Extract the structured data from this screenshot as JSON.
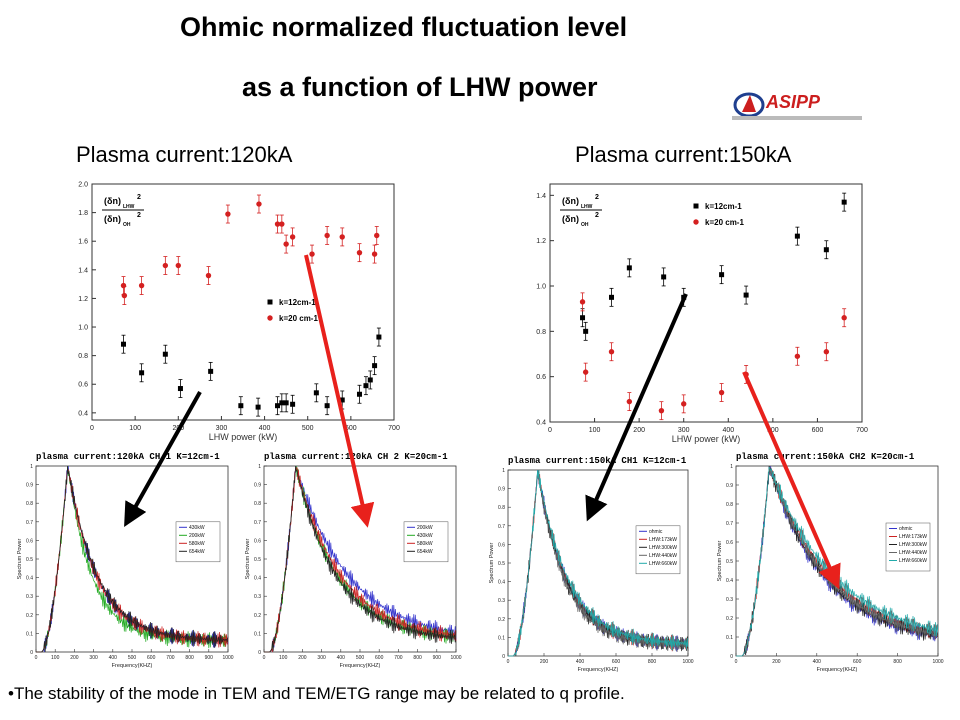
{
  "title_line1": "Ohmic normalized fluctuation level",
  "title_line2": "as a function of LHW power",
  "logo": {
    "text": "ASIPP",
    "color": "#cc1e1e"
  },
  "left_heading": "Plasma current:120kA",
  "right_heading": "Plasma current:150kA",
  "footer_note": "•The stability of the mode in TEM and TEM/ETG range may be related to q profile.",
  "arrow_colors": {
    "black": "#000000",
    "red": "#e8211c"
  },
  "chart_data": [
    {
      "id": "top-left",
      "type": "scatter",
      "xlabel": "LHW power  (kW)",
      "ylabel": "",
      "xlim": [
        0,
        700
      ],
      "ylim": [
        0.35,
        2.0
      ],
      "xticks": [
        0,
        100,
        200,
        300,
        400,
        500,
        600,
        700
      ],
      "yticks": [
        0.4,
        0.6,
        0.8,
        1.0,
        1.2,
        1.4,
        1.6,
        1.8,
        2.0
      ],
      "ytick_labels": [
        "0.4",
        "0.6",
        "0.8",
        "1.0",
        "1.2",
        "1.4",
        "1.6",
        "1.8",
        "2.0"
      ],
      "legend_formula": "(δn)LHW² / (δn)OH²",
      "series": [
        {
          "name": "k=12cm-1",
          "color": "#000000",
          "marker": "square",
          "x": [
            73,
            115,
            170,
            205,
            275,
            345,
            385,
            430,
            440,
            450,
            465,
            520,
            545,
            580,
            620,
            635,
            645,
            655,
            665
          ],
          "y": [
            0.88,
            0.68,
            0.81,
            0.57,
            0.69,
            0.45,
            0.44,
            0.45,
            0.47,
            0.47,
            0.46,
            0.54,
            0.45,
            0.49,
            0.53,
            0.59,
            0.63,
            0.73,
            0.93
          ]
        },
        {
          "name": "k=20 cm-1",
          "color": "#d42020",
          "marker": "circle",
          "x": [
            73,
            75,
            115,
            170,
            200,
            270,
            315,
            387,
            430,
            440,
            450,
            465,
            510,
            545,
            580,
            620,
            655,
            660
          ],
          "y": [
            1.29,
            1.22,
            1.29,
            1.43,
            1.43,
            1.36,
            1.79,
            1.86,
            1.72,
            1.72,
            1.58,
            1.63,
            1.51,
            1.64,
            1.63,
            1.52,
            1.51,
            1.64
          ]
        }
      ]
    },
    {
      "id": "top-right",
      "type": "scatter",
      "xlabel": "LHW  power  (kW)",
      "ylabel": "",
      "xlim": [
        0,
        700
      ],
      "ylim": [
        0.4,
        1.45
      ],
      "xticks": [
        0,
        100,
        200,
        300,
        400,
        500,
        600,
        700
      ],
      "yticks": [
        0.4,
        0.6,
        0.8,
        1.0,
        1.2,
        1.4
      ],
      "ytick_labels": [
        "0.4",
        "0.6",
        "0.8",
        "1.0",
        "1.2",
        "1.4"
      ],
      "legend_formula": "(δn)LHW² / (δn)OH²",
      "series": [
        {
          "name": "k=12cm-1",
          "color": "#000000",
          "marker": "square",
          "x": [
            73,
            80,
            138,
            178,
            255,
            300,
            385,
            440,
            555,
            620,
            660
          ],
          "y": [
            0.86,
            0.8,
            0.95,
            1.08,
            1.04,
            0.95,
            1.05,
            0.96,
            1.22,
            1.16,
            1.37
          ]
        },
        {
          "name": "k=20 cm-1",
          "color": "#d42020",
          "marker": "circle",
          "x": [
            73,
            80,
            138,
            178,
            250,
            300,
            385,
            440,
            555,
            620,
            660
          ],
          "y": [
            0.93,
            0.62,
            0.71,
            0.49,
            0.45,
            0.48,
            0.53,
            0.61,
            0.69,
            0.71,
            0.86
          ]
        }
      ]
    },
    {
      "id": "bottom-1",
      "type": "line",
      "title": "plasma current:120kA   CH 1 K=12cm-1",
      "xlabel": "Frequency(KHZ)",
      "ylabel": "Spectrum Power",
      "xlim": [
        0,
        1000
      ],
      "ylim": [
        0,
        1.0
      ],
      "xticks": [
        0,
        100,
        200,
        300,
        400,
        500,
        600,
        700,
        800,
        900,
        1000
      ],
      "yticks": [
        0,
        0.1,
        0.2,
        0.3,
        0.4,
        0.5,
        0.6,
        0.7,
        0.8,
        0.9,
        1
      ],
      "ytick_labels": [
        "0",
        "0.1",
        "0.2",
        "0.3",
        "0.4",
        "0.5",
        "0.6",
        "0.7",
        "0.8",
        "0.9",
        "1"
      ],
      "series": [
        {
          "name": "430kW",
          "color": "#3333cc",
          "decay": 0.0066
        },
        {
          "name": "200kW",
          "color": "#22aa22",
          "decay": 0.0078
        },
        {
          "name": "580kW",
          "color": "#cc2222",
          "decay": 0.0066
        },
        {
          "name": "654kW",
          "color": "#222222",
          "decay": 0.0064
        }
      ]
    },
    {
      "id": "bottom-2",
      "type": "line",
      "title": "plasma current:120kA   CH 2 K=20cm-1",
      "xlabel": "Frequency(KHZ)",
      "ylabel": "Spectrum Power",
      "xlim": [
        0,
        1000
      ],
      "ylim": [
        0,
        1.0
      ],
      "xticks": [
        0,
        100,
        200,
        300,
        400,
        500,
        600,
        700,
        800,
        900,
        1000
      ],
      "yticks": [
        0,
        0.1,
        0.2,
        0.3,
        0.4,
        0.5,
        0.6,
        0.7,
        0.8,
        0.9,
        1
      ],
      "ytick_labels": [
        "0",
        "0.1",
        "0.2",
        "0.3",
        "0.4",
        "0.5",
        "0.6",
        "0.7",
        "0.8",
        "0.9",
        "1"
      ],
      "series": [
        {
          "name": "200kW",
          "color": "#3333cc",
          "decay": 0.0036
        },
        {
          "name": "430kW",
          "color": "#22aa22",
          "decay": 0.0045
        },
        {
          "name": "580kW",
          "color": "#cc2222",
          "decay": 0.0042
        },
        {
          "name": "654kW",
          "color": "#222222",
          "decay": 0.0047
        }
      ]
    },
    {
      "id": "bottom-3",
      "type": "line",
      "title": "plasma current:150kA  CH1  K=12cm-1",
      "xlabel": "Frequency(KHZ)",
      "ylabel": "Spectrum Power",
      "xlim": [
        0,
        1000
      ],
      "ylim": [
        0,
        1.0
      ],
      "xticks": [
        0,
        200,
        400,
        600,
        800,
        1000
      ],
      "yticks": [
        0,
        0.1,
        0.2,
        0.3,
        0.4,
        0.5,
        0.6,
        0.7,
        0.8,
        0.9,
        1
      ],
      "ytick_labels": [
        "0",
        "0.1",
        "0.2",
        "0.3",
        "0.4",
        "0.5",
        "0.6",
        "0.7",
        "0.8",
        "0.9",
        "1"
      ],
      "series": [
        {
          "name": "ohmic",
          "color": "#3333cc",
          "decay": 0.0062
        },
        {
          "name": "LHW:173kW",
          "color": "#cc2222",
          "decay": 0.006
        },
        {
          "name": "LHW:300kW",
          "color": "#222222",
          "decay": 0.0064
        },
        {
          "name": "LHW:440kW",
          "color": "#666666",
          "decay": 0.0066
        },
        {
          "name": "LHW:660kW",
          "color": "#22aaaa",
          "decay": 0.0058
        }
      ]
    },
    {
      "id": "bottom-4",
      "type": "line",
      "title": "plasma current:150kA CH2 K=20cm-1",
      "xlabel": "Frequency(KHZ)",
      "ylabel": "Spectrum Power",
      "xlim": [
        0,
        1000
      ],
      "ylim": [
        0,
        1.0
      ],
      "xticks": [
        0,
        200,
        400,
        600,
        800,
        1000
      ],
      "yticks": [
        0,
        0.1,
        0.2,
        0.3,
        0.4,
        0.5,
        0.6,
        0.7,
        0.8,
        0.9,
        1
      ],
      "ytick_labels": [
        "0",
        "0.1",
        "0.2",
        "0.3",
        "0.4",
        "0.5",
        "0.6",
        "0.7",
        "0.8",
        "0.9",
        "1"
      ],
      "series": [
        {
          "name": "ohmic",
          "color": "#3333cc",
          "decay": 0.0036
        },
        {
          "name": "LHW:173kW",
          "color": "#cc2222",
          "decay": 0.0032
        },
        {
          "name": "LHW:300kW",
          "color": "#222222",
          "decay": 0.0035
        },
        {
          "name": "LHW:440kW",
          "color": "#666666",
          "decay": 0.0034
        },
        {
          "name": "LHW:660kW",
          "color": "#22aaaa",
          "decay": 0.003
        }
      ]
    }
  ]
}
